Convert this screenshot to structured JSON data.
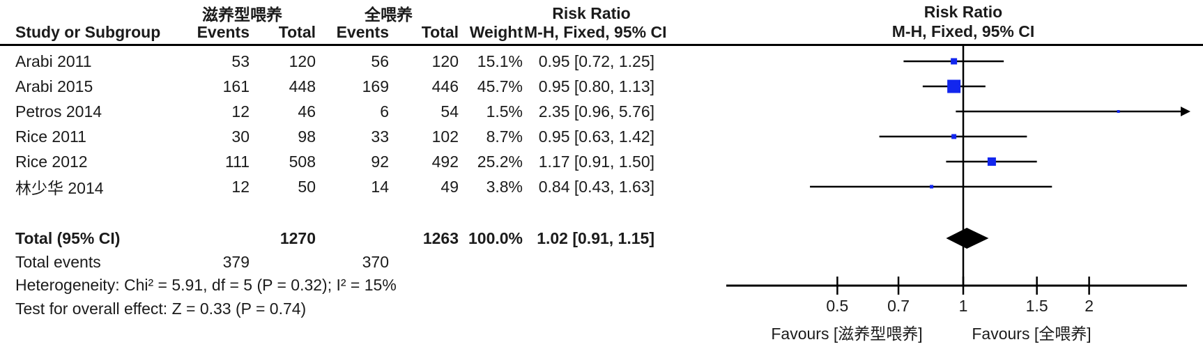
{
  "figure": {
    "headers": {
      "study": "Study or Subgroup",
      "events": "Events",
      "total": "Total",
      "weight": "Weight",
      "group1": "滋养型喂养",
      "group2": "全喂养",
      "risk_ratio": "Risk Ratio",
      "method": "M-H, Fixed, 95% CI"
    },
    "summary": {
      "total_label": "Total (95% CI)",
      "total_trophic": 1270,
      "total_full": 1263,
      "total_weight": "100.0%",
      "total_rr_label": "1.02 [0.91, 1.15]",
      "total_events_label": "Total events",
      "total_events_trophic": 379,
      "total_events_full": 370,
      "heterogeneity": "Heterogeneity: Chi² = 5.91, df = 5 (P = 0.32); I² = 15%",
      "overall_effect": "Test for overall effect: Z = 0.33 (P = 0.74)"
    }
  },
  "chart_data": {
    "type": "forest",
    "effect_measure": "Risk Ratio",
    "method": "M-H, Fixed, 95% CI",
    "x_scale": "log10",
    "axis_ticks": [
      0.5,
      0.7,
      1,
      1.5,
      2
    ],
    "studies": [
      {
        "name": "Arabi 2011",
        "events_trophic": 53,
        "total_trophic": 120,
        "events_full": 56,
        "total_full": 120,
        "weight_label": "15.1%",
        "rr_label": "0.95 [0.72, 1.25]",
        "rr": 0.95,
        "ci_low": 0.72,
        "ci_high": 1.25,
        "weight": 15.1
      },
      {
        "name": "Arabi 2015",
        "events_trophic": 161,
        "total_trophic": 448,
        "events_full": 169,
        "total_full": 446,
        "weight_label": "45.7%",
        "rr_label": "0.95 [0.80, 1.13]",
        "rr": 0.95,
        "ci_low": 0.8,
        "ci_high": 1.13,
        "weight": 45.7
      },
      {
        "name": "Petros 2014",
        "events_trophic": 12,
        "total_trophic": 46,
        "events_full": 6,
        "total_full": 54,
        "weight_label": "1.5%",
        "rr_label": "2.35 [0.96, 5.76]",
        "rr": 2.35,
        "ci_low": 0.96,
        "ci_high": 5.76,
        "weight": 1.5
      },
      {
        "name": "Rice 2011",
        "events_trophic": 30,
        "total_trophic": 98,
        "events_full": 33,
        "total_full": 102,
        "weight_label": "8.7%",
        "rr_label": "0.95 [0.63, 1.42]",
        "rr": 0.95,
        "ci_low": 0.63,
        "ci_high": 1.42,
        "weight": 8.7
      },
      {
        "name": "Rice 2012",
        "events_trophic": 111,
        "total_trophic": 508,
        "events_full": 92,
        "total_full": 492,
        "weight_label": "25.2%",
        "rr_label": "1.17 [0.91, 1.50]",
        "rr": 1.17,
        "ci_low": 0.91,
        "ci_high": 1.5,
        "weight": 25.2
      },
      {
        "name": "林少华 2014",
        "events_trophic": 12,
        "total_trophic": 50,
        "events_full": 14,
        "total_full": 49,
        "weight_label": "3.8%",
        "rr_label": "0.84 [0.43, 1.63]",
        "rr": 0.84,
        "ci_low": 0.43,
        "ci_high": 1.63,
        "weight": 3.8
      }
    ],
    "total": {
      "rr": 1.02,
      "ci_low": 0.91,
      "ci_high": 1.15,
      "weight": 100.0
    },
    "favours_left": "Favours [滋养型喂养]",
    "favours_right": "Favours [全喂养]",
    "colors": {
      "marker": "#1226ee",
      "diamond": "#000000",
      "line": "#000000"
    }
  }
}
